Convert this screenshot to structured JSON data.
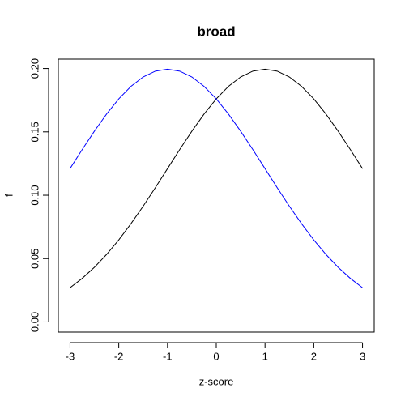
{
  "chart_data": {
    "type": "line",
    "title": "broad",
    "x_label": "z-score",
    "y_label": "f",
    "x": [
      -3,
      -2.75,
      -2.5,
      -2.25,
      -2,
      -1.75,
      -1.5,
      -1.25,
      -1,
      -0.75,
      -0.5,
      -0.25,
      0,
      0.25,
      0.5,
      0.75,
      1,
      1.25,
      1.5,
      1.75,
      2,
      2.25,
      2.5,
      2.75,
      3
    ],
    "series": [
      {
        "color": "#000000",
        "values": [
          0.027,
          0.03439,
          0.04314,
          0.05327,
          0.06476,
          0.07751,
          0.09132,
          0.10594,
          0.12099,
          0.13603,
          0.15057,
          0.16408,
          0.17603,
          0.18593,
          0.19333,
          0.19792,
          0.19947,
          0.19792,
          0.19333,
          0.18593,
          0.17603,
          0.16408,
          0.15057,
          0.13603,
          0.12099
        ]
      },
      {
        "color": "#0000ff",
        "values": [
          0.12099,
          0.13603,
          0.15057,
          0.16408,
          0.17603,
          0.18593,
          0.19333,
          0.19792,
          0.19947,
          0.19792,
          0.19333,
          0.18593,
          0.17603,
          0.16408,
          0.15057,
          0.13603,
          0.12099,
          0.10594,
          0.09132,
          0.07751,
          0.06476,
          0.05327,
          0.04314,
          0.03439,
          0.027
        ]
      }
    ],
    "xlim": [
      -3.24,
      3.24
    ],
    "ylim": [
      -0.008,
      0.2074
    ],
    "xticks": [
      -3,
      -2,
      -1,
      0,
      1,
      2,
      3
    ],
    "yticks": [
      {
        "value": 0,
        "label": "0.00"
      },
      {
        "value": 0.05,
        "label": "0.05"
      },
      {
        "value": 0.1,
        "label": "0.10"
      },
      {
        "value": 0.15,
        "label": "0.15"
      },
      {
        "value": 0.2,
        "label": "0.20"
      }
    ]
  }
}
